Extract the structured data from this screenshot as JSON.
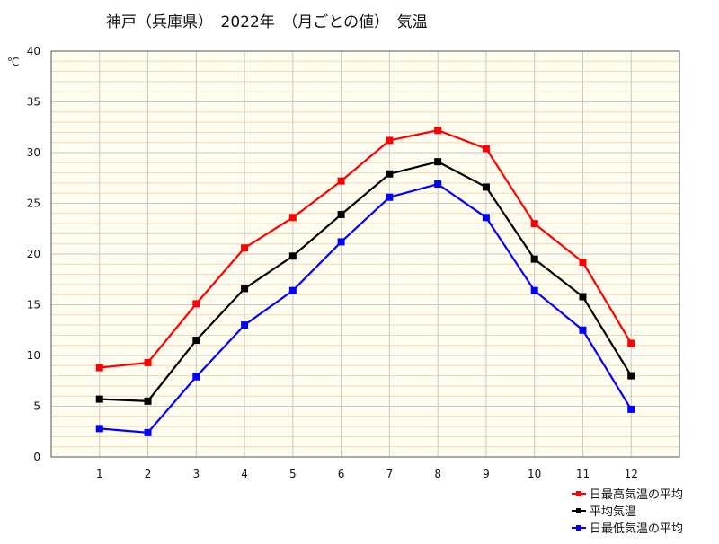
{
  "chart_data": {
    "type": "line",
    "title": "神戸（兵庫県）　2022年　（月ごとの値）　気温",
    "ylabel": "℃",
    "xlabel": "",
    "categories": [
      "1",
      "2",
      "3",
      "4",
      "5",
      "6",
      "7",
      "8",
      "9",
      "10",
      "11",
      "12"
    ],
    "ylim": [
      0,
      40
    ],
    "yticks": [
      "0",
      "5",
      "10",
      "15",
      "20",
      "25",
      "30",
      "35",
      "40"
    ],
    "grid": true,
    "legend_position": "bottom-right",
    "series": [
      {
        "name": "日最高気温の平均",
        "color": "#ff0000",
        "values": [
          8.8,
          9.3,
          15.1,
          20.6,
          23.6,
          27.2,
          31.2,
          32.2,
          30.4,
          23.0,
          19.2,
          11.2
        ]
      },
      {
        "name": "平均気温",
        "color": "#000000",
        "values": [
          5.7,
          5.5,
          11.5,
          16.6,
          19.8,
          23.9,
          27.9,
          29.1,
          26.6,
          19.5,
          15.8,
          8.0
        ]
      },
      {
        "name": "日最低気温の平均",
        "color": "#0000ff",
        "values": [
          2.8,
          2.4,
          7.9,
          13.0,
          16.4,
          21.2,
          25.6,
          26.9,
          23.6,
          16.4,
          12.5,
          4.7
        ]
      }
    ]
  },
  "colors": {
    "plot_background": "#fffdf0",
    "grid_minor": "#f3d6b0",
    "grid_major": "#c8c8c8"
  }
}
